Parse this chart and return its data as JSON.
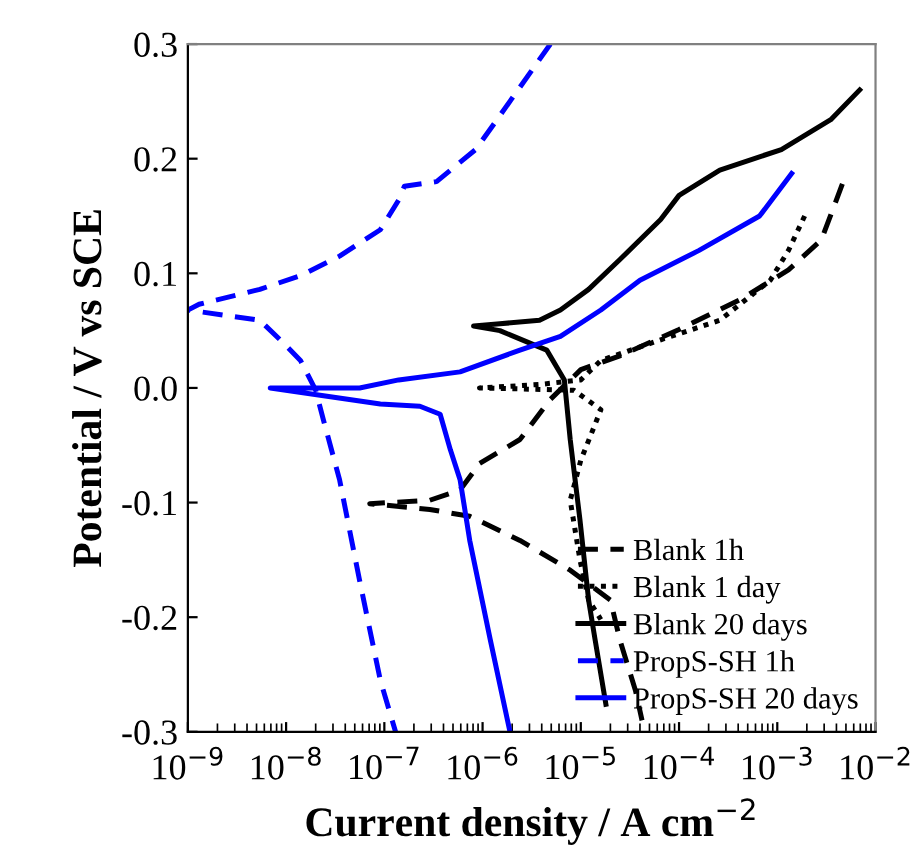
{
  "chart_data": {
    "type": "line",
    "xlabel": "Current density / A cm$^{−2}$",
    "ylabel": "Potential / V vs SCE",
    "log": "x",
    "grid": false,
    "legend": "bottom right",
    "marker": "none",
    "xlim": [
      1e-09,
      0.01
    ],
    "xticks": [
      {
        "value": 1e-09,
        "label": "10$^{−9}$"
      },
      {
        "value": 1e-08,
        "label": "10$^{−8}$"
      },
      {
        "value": 1e-07,
        "label": "10$^{−7}$"
      },
      {
        "value": 1e-06,
        "label": "10$^{−6}$"
      },
      {
        "value": 1e-05,
        "label": "10$^{−5}$"
      },
      {
        "value": 0.0001,
        "label": "10$^{−4}$"
      },
      {
        "value": 0.001,
        "label": "10$^{−3}$"
      },
      {
        "value": 0.01,
        "label": "10$^{−2}$"
      }
    ],
    "ylim": [
      -0.3,
      0.3
    ],
    "yticks": [
      {
        "value": -0.3,
        "label": "-0.3"
      },
      {
        "value": -0.2,
        "label": "-0.2"
      },
      {
        "value": -0.1,
        "label": "-0.1"
      },
      {
        "value": 0.0,
        "label": "0.0"
      },
      0.1,
      0.2,
      0.3
    ],
    "series": [
      {
        "name": "Blank 1h",
        "color": "#000000",
        "line_style": "dashed",
        "x": [
          0.0046,
          0.004,
          0.0028,
          0.0013,
          0.00042,
          0.0001,
          2.5e-05,
          1e-05,
          4.9e-06,
          2.4e-06,
          9.3e-07,
          5.9e-07,
          2.9e-07,
          7.1e-08,
          2.9e-07,
          7.4e-07,
          2.4e-06,
          7.8e-06,
          2e-05,
          2.5e-05,
          3.6e-05,
          4.2e-05
        ],
        "values": [
          0.178,
          0.164,
          0.129,
          0.103,
          0.077,
          0.051,
          0.028,
          0.016,
          -0.01,
          -0.045,
          -0.066,
          -0.089,
          -0.098,
          -0.101,
          -0.106,
          -0.112,
          -0.133,
          -0.159,
          -0.185,
          -0.22,
          -0.264,
          -0.29
        ]
      },
      {
        "name": "Blank 1 day",
        "color": "#000000",
        "line_style": "dotted",
        "x": [
          0.0019,
          0.0013,
          0.00085,
          0.00026,
          6.5e-05,
          1.6e-05,
          1e-05,
          3.8e-06,
          9.3e-07,
          8.5e-06,
          1.6e-05,
          1e-05,
          7.8e-06,
          9.8e-06,
          1.2e-05,
          1.6e-05
        ],
        "values": [
          0.15,
          0.12,
          0.094,
          0.059,
          0.042,
          0.024,
          0.007,
          0.003,
          0.0,
          -0.002,
          -0.019,
          -0.063,
          -0.098,
          -0.15,
          -0.185,
          -0.202
        ]
      },
      {
        "name": "Blank 20 days",
        "color": "#000000",
        "line_style": "solid",
        "x": [
          1.8e-05,
          1.4e-05,
          1.2e-05,
          9.8e-06,
          7.8e-06,
          6.8e-06,
          4.5e-06,
          1.5e-06,
          8.1e-07,
          1.5e-06,
          3.8e-06,
          6.2e-06,
          1.2e-05,
          2.5e-05,
          6.5e-05,
          0.0001,
          0.00026,
          0.0011,
          0.0035,
          0.0069
        ],
        "values": [
          -0.276,
          -0.22,
          -0.185,
          -0.115,
          -0.045,
          0.007,
          0.033,
          0.05,
          0.054,
          0.056,
          0.059,
          0.068,
          0.086,
          0.112,
          0.147,
          0.168,
          0.19,
          0.208,
          0.234,
          0.26
        ]
      },
      {
        "name": "PropS-SH 1h",
        "color": "#0000ff",
        "line_style": "dashed",
        "x": [
          4.9e-06,
          1.4e-06,
          8.5e-07,
          3.4e-07,
          1.6e-07,
          1.4e-07,
          9.1e-08,
          3.5e-08,
          1.4e-08,
          5.4e-09,
          1.3e-09,
          1e-09,
          5.4e-09,
          8.7e-09,
          1.4e-08,
          2e-08,
          2.4e-08,
          3.5e-08,
          5.6e-08,
          9.1e-08,
          1.3e-07
        ],
        "values": [
          0.3,
          0.234,
          0.208,
          0.18,
          0.176,
          0.164,
          0.138,
          0.115,
          0.098,
          0.086,
          0.073,
          0.068,
          0.059,
          0.042,
          0.024,
          -0.002,
          -0.028,
          -0.08,
          -0.168,
          -0.255,
          -0.3
        ]
      },
      {
        "name": "PropS-SH 20 days",
        "color": "#0000ff",
        "line_style": "solid",
        "x": [
          1.9e-06,
          1.2e-06,
          7.4e-07,
          5.9e-07,
          4.7e-07,
          3.7e-07,
          2.3e-07,
          9.1e-08,
          6.9e-09,
          5.6e-08,
          1.4e-07,
          5.9e-07,
          2.4e-06,
          6.2e-06,
          1.6e-05,
          4e-05,
          0.00016,
          0.00066,
          0.0014
        ],
        "values": [
          -0.3,
          -0.22,
          -0.133,
          -0.08,
          -0.054,
          -0.023,
          -0.016,
          -0.014,
          0.0,
          0.0,
          0.007,
          0.014,
          0.033,
          0.045,
          0.068,
          0.094,
          0.12,
          0.15,
          0.187
        ]
      }
    ]
  }
}
